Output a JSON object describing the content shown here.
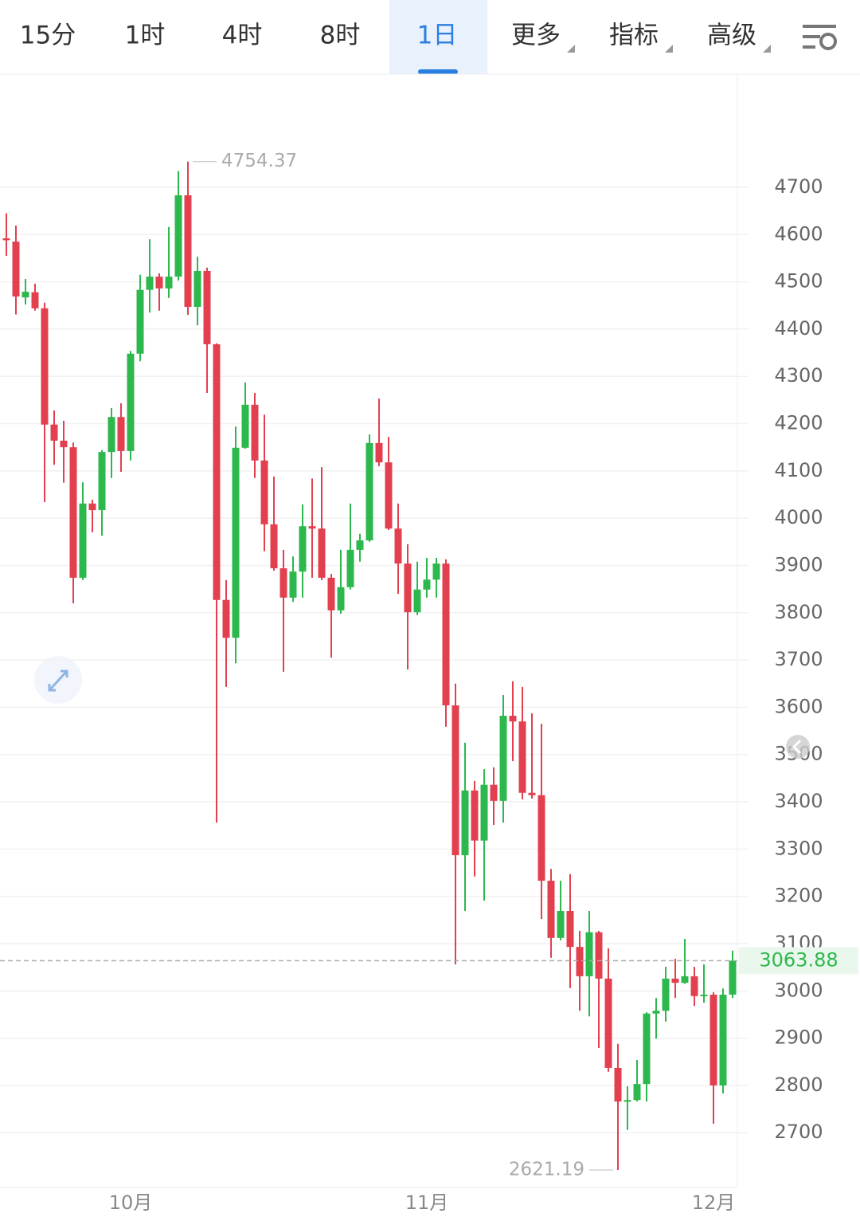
{
  "tabs": [
    "15分",
    "1时",
    "4时",
    "8时",
    "1日",
    "更多",
    "指标",
    "高级"
  ],
  "active_tab": 4,
  "chart_data": {
    "type": "candlestick",
    "categories": [
      null,
      null,
      null,
      null,
      null,
      null,
      null,
      null,
      null,
      null,
      null,
      null,
      null,
      "10月",
      null,
      null,
      null,
      null,
      null,
      null,
      null,
      null,
      null,
      null,
      null,
      null,
      null,
      null,
      null,
      null,
      null,
      null,
      null,
      null,
      null,
      null,
      null,
      null,
      null,
      null,
      null,
      null,
      null,
      null,
      "11月",
      null,
      null,
      null,
      null,
      null,
      null,
      null,
      null,
      null,
      null,
      null,
      null,
      null,
      null,
      null,
      null,
      null,
      null,
      null,
      null,
      null,
      null,
      null,
      null,
      null,
      null,
      null,
      null,
      null,
      "12月",
      null,
      null
    ],
    "open": [
      4592,
      4585,
      4467,
      4478,
      4444,
      4198,
      4164,
      4150,
      3874,
      4031,
      4017,
      4140,
      4214,
      4142,
      4348,
      4483,
      4511,
      4486,
      4511,
      4683,
      4447,
      4523,
      4368,
      3827,
      3747,
      4149,
      4240,
      4122,
      3987,
      3894,
      3832,
      3887,
      3983,
      3978,
      3874,
      3805,
      3854,
      3933,
      3953,
      4159,
      4118,
      3978,
      3904,
      3801,
      3849,
      3870,
      3904,
      3604,
      3287,
      3424,
      3318,
      3436,
      3402,
      3582,
      3570,
      3419,
      3414,
      3233,
      3112,
      3169,
      3093,
      3031,
      3124,
      3026,
      2837,
      2766,
      2769,
      2803,
      2952,
      2958,
      3026,
      3017,
      3031,
      2989,
      2992,
      2800,
      2992
    ],
    "high": [
      4645,
      4619,
      4506,
      4496,
      4456,
      4228,
      4206,
      4160,
      4076,
      4039,
      4144,
      4233,
      4243,
      4354,
      4515,
      4590,
      4518,
      4616,
      4734,
      4754.37,
      4553,
      4530,
      4370,
      3869,
      4194,
      4287,
      4265,
      4219,
      4088,
      3933,
      3919,
      4029,
      4084,
      4108,
      3882,
      3933,
      4031,
      3967,
      4177,
      4253,
      4172,
      4031,
      3945,
      3908,
      3916,
      3916,
      3913,
      3650,
      3525,
      3444,
      3469,
      3473,
      3626,
      3655,
      3643,
      3587,
      3565,
      3258,
      3233,
      3247,
      3127,
      3169,
      3127,
      3090,
      2888,
      2798,
      2854,
      2955,
      2985,
      3051,
      3068,
      3110,
      3051,
      3056,
      2997,
      3005,
      3085
    ],
    "low": [
      4555,
      4431,
      4452,
      4439,
      4034,
      4113,
      4075,
      3820,
      3869,
      3970,
      3963,
      4085,
      4098,
      4122,
      4332,
      4435,
      4439,
      4466,
      4503,
      4430,
      4408,
      4265,
      3356,
      3643,
      3693,
      4147,
      4085,
      3930,
      3889,
      3675,
      3823,
      3832,
      3874,
      3869,
      3705,
      3798,
      3849,
      3908,
      3950,
      4110,
      3975,
      3840,
      3680,
      3795,
      3832,
      3832,
      3559,
      3056,
      3169,
      3242,
      3191,
      3351,
      3356,
      3486,
      3405,
      3407,
      3152,
      3070,
      3107,
      3006,
      2958,
      2946,
      2879,
      2829,
      2621.19,
      2706,
      2766,
      2766,
      2899,
      2935,
      2985,
      3015,
      2968,
      2975,
      2719,
      2783,
      2985
    ],
    "close": [
      4588,
      4469,
      4479,
      4444,
      4198,
      4164,
      4150,
      3874,
      4031,
      4017,
      4140,
      4214,
      4142,
      4348,
      4483,
      4511,
      4486,
      4511,
      4683,
      4447,
      4523,
      4368,
      3827,
      3747,
      4149,
      4240,
      4122,
      3987,
      3894,
      3832,
      3887,
      3983,
      3978,
      3874,
      3805,
      3854,
      3933,
      3953,
      4159,
      4118,
      3978,
      3904,
      3801,
      3849,
      3870,
      3904,
      3604,
      3287,
      3424,
      3318,
      3436,
      3402,
      3582,
      3570,
      3419,
      3414,
      3233,
      3112,
      3169,
      3093,
      3031,
      3124,
      3026,
      2837,
      2766,
      2769,
      2803,
      2952,
      2958,
      3026,
      3017,
      3031,
      2989,
      2992,
      2800,
      2992,
      3063.88
    ],
    "up_color": "#2db84d",
    "down_color": "#e2404f",
    "ylim": [
      2584,
      4936
    ],
    "yticks": [
      2700,
      2800,
      2900,
      3000,
      3100,
      3200,
      3300,
      3400,
      3500,
      3600,
      3700,
      3800,
      3900,
      4000,
      4100,
      4200,
      4300,
      4400,
      4500,
      4600,
      4700
    ],
    "grid": true,
    "max_index": 19,
    "min_index": 64
  }
}
